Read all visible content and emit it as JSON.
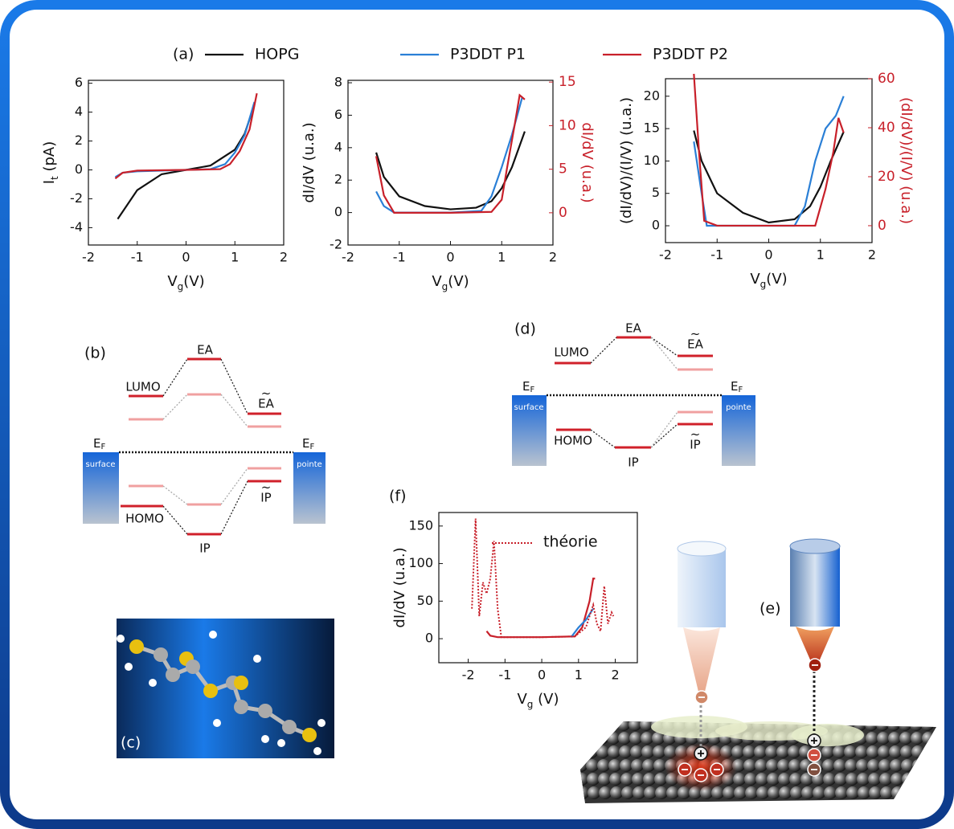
{
  "chart_data": [
    {
      "type": "line",
      "panel_label": "(a)",
      "ylabel": [
        "I",
        "t",
        " (pA)"
      ],
      "xlabel": [
        "V",
        "g",
        "(V)"
      ],
      "xlim": [
        -2,
        2
      ],
      "xticks": [
        -2,
        -1,
        0,
        1,
        2
      ],
      "ylim": [
        -5.2,
        6.2
      ],
      "yticks": [
        -4,
        -2,
        0,
        2,
        4,
        6
      ],
      "series": [
        {
          "name": "HOPG",
          "color": "#111111",
          "x": [
            -1.4,
            -1,
            -0.5,
            0,
            0.5,
            1,
            1.2,
            1.4
          ],
          "values": [
            -3.4,
            -1.4,
            -0.3,
            0,
            0.3,
            1.4,
            2.5,
            4.5
          ]
        },
        {
          "name": "P3DDT P1",
          "color": "#2a7fd6",
          "x": [
            -1.45,
            -1.3,
            -1,
            0,
            0.5,
            0.8,
            1,
            1.2,
            1.4
          ],
          "values": [
            -0.5,
            -0.2,
            -0.1,
            0,
            0.05,
            0.4,
            1.2,
            2.4,
            4.7
          ]
        },
        {
          "name": "P3DDT P2",
          "color": "#c8202a",
          "x": [
            -1.45,
            -1.3,
            -1,
            0,
            0.7,
            0.9,
            1.1,
            1.3,
            1.45
          ],
          "values": [
            -0.6,
            -0.2,
            -0.05,
            0,
            0.05,
            0.4,
            1.3,
            2.8,
            5.3
          ]
        }
      ]
    },
    {
      "type": "line",
      "ylabel": "dI/dV (u.a.)",
      "y2label": "dI/dV (u.a.)",
      "xlabel": [
        "V",
        "g",
        "(V)"
      ],
      "xlim": [
        -2,
        2
      ],
      "xticks": [
        -2,
        -1,
        0,
        1,
        2
      ],
      "ylim": [
        -2,
        8.15
      ],
      "yticks": [
        -2,
        0,
        2,
        4,
        6,
        8
      ],
      "y2lim": [
        -3.7,
        15.2
      ],
      "y2ticks": [
        0,
        5,
        10,
        15
      ],
      "series": [
        {
          "color": "#111111",
          "x": [
            -1.45,
            -1.3,
            -1,
            -0.5,
            0,
            0.5,
            0.8,
            1,
            1.2,
            1.45
          ],
          "values": [
            3.7,
            2.2,
            1,
            0.4,
            0.2,
            0.3,
            0.7,
            1.5,
            2.8,
            5
          ]
        },
        {
          "color": "#2a7fd6",
          "x": [
            -1.45,
            -1.3,
            -1.1,
            0,
            0.6,
            0.8,
            1,
            1.2,
            1.4
          ],
          "values": [
            1.3,
            0.4,
            0,
            0,
            0.1,
            1,
            2.8,
            4.8,
            7.1
          ]
        },
        {
          "color": "#c8202a",
          "axis": "y2",
          "x": [
            -1.45,
            -1.3,
            -1.1,
            0,
            0.8,
            1,
            1.1,
            1.25,
            1.35,
            1.45
          ],
          "values": [
            6.5,
            2,
            0,
            0,
            0.1,
            1.5,
            5,
            10,
            13.5,
            13
          ]
        }
      ]
    },
    {
      "type": "line",
      "ylabel": "(dI/dV)/(I/V) (u.a.)",
      "y2label": "(dI/dV)/(I/V) (u.a.)",
      "xlabel": [
        "V",
        "g",
        "(V)"
      ],
      "xlim": [
        -2,
        2
      ],
      "xticks": [
        -2,
        -1,
        0,
        1,
        2
      ],
      "ylim": [
        -2.6,
        22.7
      ],
      "yticks": [
        0,
        5,
        10,
        15,
        20
      ],
      "y2lim": [
        -6.9,
        60
      ],
      "y2ticks": [
        0,
        20,
        40,
        60
      ],
      "series": [
        {
          "color": "#111111",
          "x": [
            -1.45,
            -1.3,
            -1,
            -0.5,
            0,
            0.5,
            0.8,
            1,
            1.2,
            1.45
          ],
          "values": [
            14.7,
            10,
            5,
            2,
            0.5,
            1,
            3,
            6,
            10,
            14.5
          ]
        },
        {
          "color": "#2a7fd6",
          "x": [
            -1.45,
            -1.3,
            -1.2,
            0,
            0.5,
            0.7,
            0.9,
            1.1,
            1.3,
            1.45
          ],
          "values": [
            13,
            5,
            0,
            0,
            0,
            3,
            10,
            15,
            17,
            20
          ]
        },
        {
          "color": "#c8202a",
          "axis": "y2",
          "x": [
            -1.45,
            -1.35,
            -1.25,
            -1,
            0,
            0.6,
            0.9,
            1.1,
            1.25,
            1.35,
            1.45
          ],
          "values": [
            62,
            30,
            2,
            0,
            0,
            0,
            0,
            15,
            30,
            44,
            38
          ]
        }
      ]
    },
    {
      "type": "line",
      "panel_label": "(f)",
      "ylabel": "dI/dV (u.a.)",
      "xlabel": [
        "V",
        "g",
        " (V)"
      ],
      "xlim": [
        -2.8,
        2.6
      ],
      "xticks": [
        -2,
        -1,
        0,
        1,
        2
      ],
      "ylim": [
        -32,
        168
      ],
      "yticks": [
        0,
        50,
        100,
        150
      ],
      "series": [
        {
          "color": "#c8202a",
          "x": [
            -1.5,
            -1.4,
            -1.2,
            0,
            0.9,
            1.1,
            1.3,
            1.4,
            1.45
          ],
          "values": [
            10,
            4,
            2,
            2,
            3,
            15,
            50,
            80,
            80
          ]
        },
        {
          "color": "#2a7fd6",
          "x": [
            0.8,
            1,
            1.2,
            1.4
          ],
          "values": [
            2,
            15,
            25,
            40
          ]
        },
        {
          "name": "théorie",
          "color": "#c8202a",
          "style": "dotted",
          "x": [
            -1.9,
            -1.8,
            -1.7,
            -1.6,
            -1.5,
            -1.4,
            -1.3,
            -1.2,
            -1.1,
            0,
            0.9,
            1.2,
            1.4,
            1.5,
            1.6,
            1.7,
            1.8,
            1.9,
            1.95
          ],
          "values": [
            40,
            160,
            30,
            75,
            60,
            80,
            130,
            40,
            2,
            2,
            3,
            15,
            45,
            20,
            10,
            70,
            20,
            35,
            30
          ]
        }
      ]
    }
  ],
  "diagram_b": {
    "label": "(b)",
    "EA": "EA",
    "LUMO": "LUMO",
    "EA_tilde": {
      "text": "EA",
      "accent": "~"
    },
    "EF_left": [
      "E",
      "F"
    ],
    "surface": "surface",
    "EF_right": [
      "E",
      "F"
    ],
    "pointe": "pointe",
    "HOMO": "HOMO",
    "IP": "IP",
    "IP_tilde": {
      "text": "IP",
      "accent": "~"
    }
  },
  "diagram_d": {
    "label": "(d)",
    "EA": "EA",
    "LUMO": "LUMO",
    "EA_tilde": {
      "text": "EA",
      "accent": "~"
    },
    "EF_left": [
      "E",
      "F"
    ],
    "surface": "surface",
    "EF_right": [
      "E",
      "F"
    ],
    "pointe": "pointe",
    "HOMO": "HOMO",
    "IP": "IP",
    "IP_tilde": {
      "text": "IP",
      "accent": "~"
    }
  },
  "image_c": {
    "label": "(c)"
  },
  "image_e": {
    "label": "(e)"
  }
}
